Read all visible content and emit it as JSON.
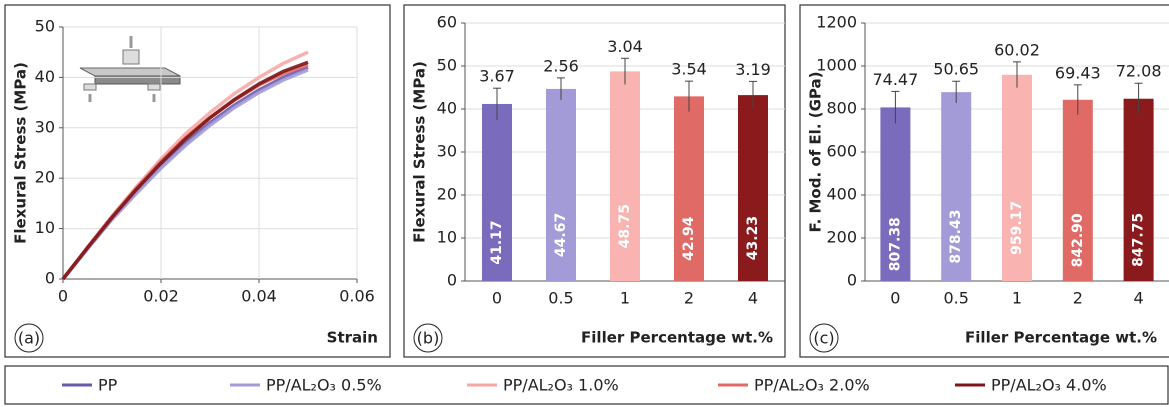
{
  "chart_data": [
    {
      "type": "line",
      "panel_label": "(a)",
      "x_label": "Strain",
      "y_label": "Flexural Stress (MPa)",
      "x": [
        0,
        0.005,
        0.01,
        0.015,
        0.02,
        0.025,
        0.03,
        0.035,
        0.04,
        0.045,
        0.05
      ],
      "series": [
        {
          "name": "PP",
          "color": "#6a5aab",
          "values": [
            0,
            6,
            12,
            17.5,
            22.5,
            27,
            31,
            34.5,
            37.5,
            40,
            42
          ]
        },
        {
          "name": "PP/AL₂O₃ 0.5%",
          "color": "#a29bd8",
          "values": [
            0,
            6,
            11.8,
            17,
            22,
            26.5,
            30.5,
            34,
            37,
            39.5,
            41.5
          ]
        },
        {
          "name": "PP/AL₂O₃ 1.0%",
          "color": "#f7a8a6",
          "values": [
            0,
            6.3,
            12.5,
            18.3,
            23.8,
            28.8,
            33,
            36.8,
            40,
            42.8,
            45
          ]
        },
        {
          "name": "PP/AL₂O₃ 2.0%",
          "color": "#e06b66",
          "values": [
            0,
            6.2,
            12.3,
            18,
            23.3,
            28,
            32,
            35.5,
            38.5,
            40.8,
            42.5
          ]
        },
        {
          "name": "PP/AL₂O₃ 4.0%",
          "color": "#7d1518",
          "values": [
            0,
            6.2,
            12.2,
            17.8,
            23,
            27.8,
            32,
            35.6,
            38.7,
            41.2,
            43
          ]
        }
      ],
      "xlim": [
        0,
        0.06
      ],
      "xticks": [
        0,
        0.02,
        0.04,
        0.06
      ],
      "ylim": [
        0,
        50
      ],
      "yticks": [
        0,
        10,
        20,
        30,
        40,
        50
      ]
    },
    {
      "type": "bar",
      "panel_label": "(b)",
      "x_label": "Filler Percentage wt.%",
      "y_label": "Flexural Stress (MPa)",
      "categories": [
        "0",
        "0.5",
        "1",
        "2",
        "4"
      ],
      "values": [
        41.17,
        44.67,
        48.75,
        42.94,
        43.23
      ],
      "errors": [
        3.67,
        2.56,
        3.04,
        3.54,
        3.19
      ],
      "colors": [
        "#7a6bbd",
        "#a29bd8",
        "#f9b4b1",
        "#e06b66",
        "#8b1a1c"
      ],
      "ylim": [
        0,
        60
      ],
      "yticks": [
        0,
        10,
        20,
        30,
        40,
        50,
        60
      ]
    },
    {
      "type": "bar",
      "panel_label": "(c)",
      "x_label": "Filler Percentage wt.%",
      "y_label": "F. Mod. of El. (GPa)",
      "categories": [
        "0",
        "0.5",
        "1",
        "2",
        "4"
      ],
      "values": [
        807.38,
        878.43,
        959.17,
        842.9,
        847.75
      ],
      "value_labels": [
        "807.38",
        "878.43",
        "959.17",
        "842.90",
        "847.75"
      ],
      "errors": [
        74.47,
        50.65,
        60.02,
        69.43,
        72.08
      ],
      "colors": [
        "#7a6bbd",
        "#a29bd8",
        "#f9b4b1",
        "#e06b66",
        "#8b1a1c"
      ],
      "ylim": [
        0,
        1200
      ],
      "yticks": [
        0,
        200,
        400,
        600,
        800,
        1000,
        1200
      ]
    }
  ]
}
